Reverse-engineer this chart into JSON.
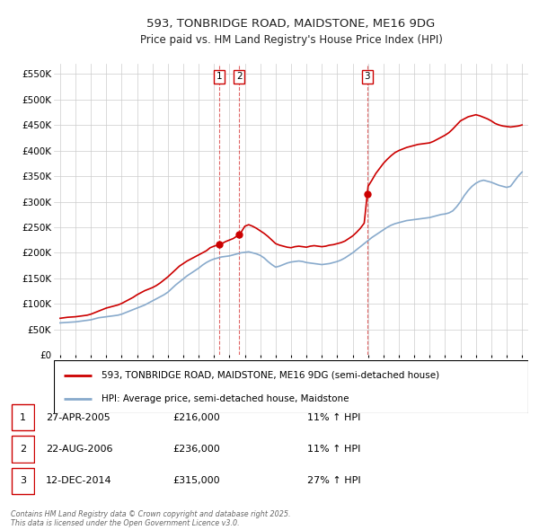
{
  "title": "593, TONBRIDGE ROAD, MAIDSTONE, ME16 9DG",
  "subtitle": "Price paid vs. HM Land Registry's House Price Index (HPI)",
  "legend_line1": "593, TONBRIDGE ROAD, MAIDSTONE, ME16 9DG (semi-detached house)",
  "legend_line2": "HPI: Average price, semi-detached house, Maidstone",
  "footnote": "Contains HM Land Registry data © Crown copyright and database right 2025.\nThis data is licensed under the Open Government Licence v3.0.",
  "sales": [
    {
      "num": 1,
      "date": "27-APR-2005",
      "date_x": 2005.32,
      "price": 216000,
      "hpi_pct": "11%",
      "dir": "↑"
    },
    {
      "num": 2,
      "date": "22-AUG-2006",
      "date_x": 2006.64,
      "price": 236000,
      "hpi_pct": "11%",
      "dir": "↑"
    },
    {
      "num": 3,
      "date": "12-DEC-2014",
      "date_x": 2014.95,
      "price": 315000,
      "hpi_pct": "27%",
      "dir": "↑"
    }
  ],
  "ylim": [
    0,
    570000
  ],
  "yticks": [
    0,
    50000,
    100000,
    150000,
    200000,
    250000,
    300000,
    350000,
    400000,
    450000,
    500000,
    550000
  ],
  "xlim": [
    1994.6,
    2025.4
  ],
  "red_color": "#cc0000",
  "blue_color": "#88aacc",
  "bg_color": "#ffffff",
  "grid_color": "#cccccc",
  "title_color": "#222222",
  "hpi_years": [
    1995.0,
    1995.25,
    1995.5,
    1995.75,
    1996.0,
    1996.25,
    1996.5,
    1996.75,
    1997.0,
    1997.25,
    1997.5,
    1997.75,
    1998.0,
    1998.25,
    1998.5,
    1998.75,
    1999.0,
    1999.25,
    1999.5,
    1999.75,
    2000.0,
    2000.25,
    2000.5,
    2000.75,
    2001.0,
    2001.25,
    2001.5,
    2001.75,
    2002.0,
    2002.25,
    2002.5,
    2002.75,
    2003.0,
    2003.25,
    2003.5,
    2003.75,
    2004.0,
    2004.25,
    2004.5,
    2004.75,
    2005.0,
    2005.25,
    2005.5,
    2005.75,
    2006.0,
    2006.25,
    2006.5,
    2006.75,
    2007.0,
    2007.25,
    2007.5,
    2007.75,
    2008.0,
    2008.25,
    2008.5,
    2008.75,
    2009.0,
    2009.25,
    2009.5,
    2009.75,
    2010.0,
    2010.25,
    2010.5,
    2010.75,
    2011.0,
    2011.25,
    2011.5,
    2011.75,
    2012.0,
    2012.25,
    2012.5,
    2012.75,
    2013.0,
    2013.25,
    2013.5,
    2013.75,
    2014.0,
    2014.25,
    2014.5,
    2014.75,
    2015.0,
    2015.25,
    2015.5,
    2015.75,
    2016.0,
    2016.25,
    2016.5,
    2016.75,
    2017.0,
    2017.25,
    2017.5,
    2017.75,
    2018.0,
    2018.25,
    2018.5,
    2018.75,
    2019.0,
    2019.25,
    2019.5,
    2019.75,
    2020.0,
    2020.25,
    2020.5,
    2020.75,
    2021.0,
    2021.25,
    2021.5,
    2021.75,
    2022.0,
    2022.25,
    2022.5,
    2022.75,
    2023.0,
    2023.25,
    2023.5,
    2023.75,
    2024.0,
    2024.25,
    2024.5,
    2024.75,
    2025.0
  ],
  "hpi_vals": [
    63000,
    63500,
    64000,
    64500,
    65000,
    66000,
    67000,
    68000,
    69000,
    71000,
    73000,
    74000,
    75000,
    76000,
    77000,
    78000,
    80000,
    83000,
    86000,
    89000,
    92000,
    95000,
    98000,
    102000,
    106000,
    110000,
    114000,
    118000,
    123000,
    130000,
    137000,
    143000,
    149000,
    155000,
    160000,
    165000,
    170000,
    176000,
    181000,
    185000,
    188000,
    190000,
    192000,
    193000,
    194000,
    196000,
    198000,
    200000,
    201000,
    202000,
    200000,
    198000,
    195000,
    190000,
    183000,
    177000,
    172000,
    174000,
    177000,
    180000,
    182000,
    183000,
    184000,
    183000,
    181000,
    180000,
    179000,
    178000,
    177000,
    178000,
    179000,
    181000,
    183000,
    186000,
    190000,
    195000,
    200000,
    206000,
    212000,
    218000,
    224000,
    230000,
    235000,
    240000,
    245000,
    250000,
    254000,
    257000,
    259000,
    261000,
    263000,
    264000,
    265000,
    266000,
    267000,
    268000,
    269000,
    271000,
    273000,
    275000,
    276000,
    278000,
    282000,
    290000,
    300000,
    312000,
    322000,
    330000,
    336000,
    340000,
    342000,
    340000,
    338000,
    335000,
    332000,
    330000,
    328000,
    330000,
    340000,
    350000,
    358000
  ],
  "price_years": [
    1995.0,
    1995.25,
    1995.5,
    1995.75,
    1996.0,
    1996.25,
    1996.5,
    1996.75,
    1997.0,
    1997.25,
    1997.5,
    1997.75,
    1998.0,
    1998.25,
    1998.5,
    1998.75,
    1999.0,
    1999.25,
    1999.5,
    1999.75,
    2000.0,
    2000.25,
    2000.5,
    2000.75,
    2001.0,
    2001.25,
    2001.5,
    2001.75,
    2002.0,
    2002.25,
    2002.5,
    2002.75,
    2003.0,
    2003.25,
    2003.5,
    2003.75,
    2004.0,
    2004.25,
    2004.5,
    2004.75,
    2005.0,
    2005.32,
    2005.5,
    2005.75,
    2006.0,
    2006.25,
    2006.5,
    2006.64,
    2006.75,
    2007.0,
    2007.25,
    2007.5,
    2007.75,
    2008.0,
    2008.25,
    2008.5,
    2008.75,
    2009.0,
    2009.25,
    2009.5,
    2009.75,
    2010.0,
    2010.25,
    2010.5,
    2010.75,
    2011.0,
    2011.25,
    2011.5,
    2011.75,
    2012.0,
    2012.25,
    2012.5,
    2012.75,
    2013.0,
    2013.25,
    2013.5,
    2013.75,
    2014.0,
    2014.25,
    2014.5,
    2014.75,
    2014.95,
    2015.0,
    2015.25,
    2015.5,
    2015.75,
    2016.0,
    2016.25,
    2016.5,
    2016.75,
    2017.0,
    2017.25,
    2017.5,
    2017.75,
    2018.0,
    2018.25,
    2018.5,
    2018.75,
    2019.0,
    2019.25,
    2019.5,
    2019.75,
    2020.0,
    2020.25,
    2020.5,
    2020.75,
    2021.0,
    2021.25,
    2021.5,
    2021.75,
    2022.0,
    2022.25,
    2022.5,
    2022.75,
    2023.0,
    2023.25,
    2023.5,
    2023.75,
    2024.0,
    2024.25,
    2024.5,
    2024.75,
    2025.0
  ],
  "price_vals": [
    72000,
    73000,
    74000,
    74500,
    75000,
    76000,
    77000,
    78000,
    80000,
    83000,
    86000,
    89000,
    92000,
    94000,
    96000,
    98000,
    101000,
    105000,
    109000,
    113000,
    118000,
    122000,
    126000,
    129000,
    132000,
    136000,
    141000,
    147000,
    153000,
    160000,
    167000,
    174000,
    179000,
    184000,
    188000,
    192000,
    196000,
    200000,
    204000,
    210000,
    213000,
    216000,
    218000,
    222000,
    225000,
    228000,
    233000,
    236000,
    240000,
    252000,
    255000,
    252000,
    248000,
    243000,
    238000,
    232000,
    225000,
    218000,
    215000,
    213000,
    211000,
    210000,
    212000,
    213000,
    212000,
    211000,
    213000,
    214000,
    213000,
    212000,
    213000,
    215000,
    216000,
    218000,
    220000,
    223000,
    228000,
    233000,
    240000,
    248000,
    258000,
    315000,
    330000,
    342000,
    355000,
    365000,
    375000,
    383000,
    390000,
    396000,
    400000,
    403000,
    406000,
    408000,
    410000,
    412000,
    413000,
    414000,
    415000,
    418000,
    422000,
    426000,
    430000,
    435000,
    442000,
    450000,
    458000,
    462000,
    466000,
    468000,
    470000,
    468000,
    465000,
    462000,
    458000,
    453000,
    450000,
    448000,
    447000,
    446000,
    447000,
    448000,
    450000
  ]
}
